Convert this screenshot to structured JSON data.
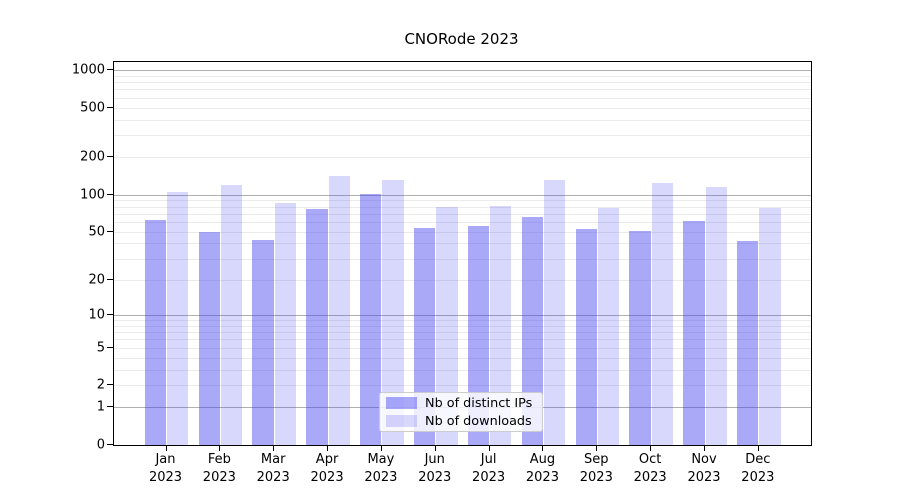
{
  "chart_data": {
    "type": "bar",
    "title": "CNORode 2023",
    "categories": [
      "Jan 2023",
      "Feb 2023",
      "Mar 2023",
      "Apr 2023",
      "May 2023",
      "Jun 2023",
      "Jul 2023",
      "Aug 2023",
      "Sep 2023",
      "Oct 2023",
      "Nov 2023",
      "Dec 2023"
    ],
    "series": [
      {
        "name": "Nb of distinct IPs",
        "values": [
          62,
          50,
          43,
          76,
          101,
          54,
          56,
          66,
          53,
          51,
          61,
          42
        ]
      },
      {
        "name": "Nb of downloads",
        "values": [
          104,
          119,
          85,
          140,
          131,
          80,
          81,
          132,
          78,
          124,
          115,
          78
        ]
      }
    ],
    "xlabel": "",
    "ylabel": "",
    "yscale": "log1p",
    "y_ticks": [
      1000,
      500,
      200,
      100,
      50,
      20,
      10,
      5,
      2,
      1,
      0
    ],
    "ylim": [
      0,
      1160
    ],
    "grid": true,
    "legend_position": "lower center"
  },
  "colors": {
    "bar_distinct_ips": "rgba(60,60,240,0.44)",
    "bar_downloads": "rgba(60,60,240,0.20)",
    "grid_major": "#b0b0b0",
    "grid_minor": "#ebebeb",
    "axis": "#000000"
  }
}
